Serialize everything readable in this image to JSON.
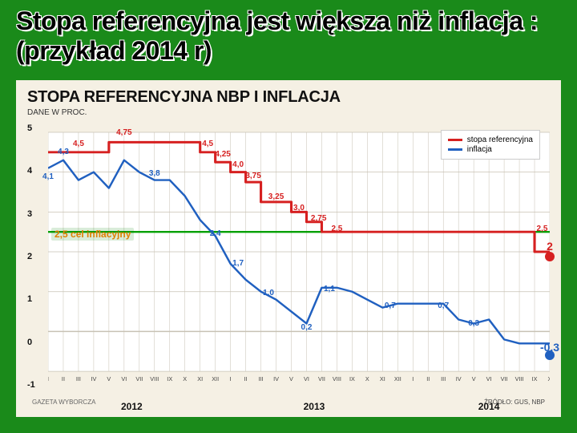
{
  "slide": {
    "title": "Stopa referencyjna jest większa niż inflacja : (przykład 2014 r)"
  },
  "chart": {
    "type": "line",
    "title": "STOPA REFERENCYJNA NBP I INFLACJA",
    "subtitle": "DANE W PROC.",
    "background_color": "#f5f0e4",
    "plot_bg": "#ffffff",
    "grid_color": "#c8c2b4",
    "ylim": [
      -1,
      5
    ],
    "yticks": [
      -1,
      0,
      1,
      2,
      3,
      4,
      5
    ],
    "xlim": [
      1,
      34
    ],
    "months": [
      "I",
      "II",
      "III",
      "IV",
      "V",
      "VI",
      "VII",
      "VIII",
      "IX",
      "X",
      "XI",
      "XII"
    ],
    "years": [
      {
        "label": "2012",
        "center_month": 6.5
      },
      {
        "label": "2013",
        "center_month": 18.5
      },
      {
        "label": "2014",
        "center_month": 30
      }
    ],
    "target_line": {
      "value": 2.5,
      "label": "2,5 cel inflacyjny",
      "color": "#00a000"
    },
    "series": [
      {
        "name": "stopa referencyjna",
        "color": "#d62020",
        "width": 3,
        "step": true,
        "points": [
          {
            "x": 1,
            "y": 4.5
          },
          {
            "x": 5,
            "y": 4.5
          },
          {
            "x": 5,
            "y": 4.75
          },
          {
            "x": 11,
            "y": 4.75
          },
          {
            "x": 11,
            "y": 4.5
          },
          {
            "x": 12,
            "y": 4.5
          },
          {
            "x": 12,
            "y": 4.25
          },
          {
            "x": 13,
            "y": 4.25
          },
          {
            "x": 13,
            "y": 4.0
          },
          {
            "x": 14,
            "y": 4.0
          },
          {
            "x": 14,
            "y": 3.75
          },
          {
            "x": 15,
            "y": 3.75
          },
          {
            "x": 15,
            "y": 3.25
          },
          {
            "x": 17,
            "y": 3.25
          },
          {
            "x": 17,
            "y": 3.0
          },
          {
            "x": 18,
            "y": 3.0
          },
          {
            "x": 18,
            "y": 2.75
          },
          {
            "x": 19,
            "y": 2.75
          },
          {
            "x": 19,
            "y": 2.5
          },
          {
            "x": 33,
            "y": 2.5
          },
          {
            "x": 33,
            "y": 2.0
          },
          {
            "x": 34,
            "y": 2.0
          }
        ],
        "annotations": [
          {
            "x": 3,
            "y": 4.5,
            "t": "4,5"
          },
          {
            "x": 6,
            "y": 4.75,
            "t": "4,75"
          },
          {
            "x": 11.5,
            "y": 4.5,
            "t": "4,5"
          },
          {
            "x": 12.5,
            "y": 4.25,
            "t": "4,25"
          },
          {
            "x": 13.5,
            "y": 4.0,
            "t": "4,0"
          },
          {
            "x": 14.5,
            "y": 3.75,
            "t": "3,75"
          },
          {
            "x": 16,
            "y": 3.25,
            "t": "3,25"
          },
          {
            "x": 17.5,
            "y": 3.0,
            "t": "3,0"
          },
          {
            "x": 18.8,
            "y": 2.75,
            "t": "2,75"
          },
          {
            "x": 20,
            "y": 2.5,
            "t": "2,5"
          },
          {
            "x": 33.5,
            "y": 2.5,
            "t": "2,5"
          },
          {
            "x": 34,
            "y": 2.05,
            "t": "2",
            "bold": true
          }
        ],
        "end_marker": {
          "x": 34,
          "y": 2.0
        }
      },
      {
        "name": "inflacja",
        "color": "#2060c0",
        "width": 2.4,
        "step": false,
        "points": [
          {
            "x": 1,
            "y": 4.1
          },
          {
            "x": 2,
            "y": 4.3
          },
          {
            "x": 3,
            "y": 3.8
          },
          {
            "x": 4,
            "y": 4.0
          },
          {
            "x": 5,
            "y": 3.6
          },
          {
            "x": 6,
            "y": 4.3
          },
          {
            "x": 7,
            "y": 4.0
          },
          {
            "x": 8,
            "y": 3.8
          },
          {
            "x": 9,
            "y": 3.8
          },
          {
            "x": 10,
            "y": 3.4
          },
          {
            "x": 11,
            "y": 2.8
          },
          {
            "x": 12,
            "y": 2.4
          },
          {
            "x": 13,
            "y": 1.7
          },
          {
            "x": 14,
            "y": 1.3
          },
          {
            "x": 15,
            "y": 1.0
          },
          {
            "x": 16,
            "y": 0.8
          },
          {
            "x": 17,
            "y": 0.5
          },
          {
            "x": 18,
            "y": 0.2
          },
          {
            "x": 19,
            "y": 1.1
          },
          {
            "x": 20,
            "y": 1.1
          },
          {
            "x": 21,
            "y": 1.0
          },
          {
            "x": 22,
            "y": 0.8
          },
          {
            "x": 23,
            "y": 0.6
          },
          {
            "x": 24,
            "y": 0.7
          },
          {
            "x": 25,
            "y": 0.7
          },
          {
            "x": 26,
            "y": 0.7
          },
          {
            "x": 27,
            "y": 0.7
          },
          {
            "x": 28,
            "y": 0.3
          },
          {
            "x": 29,
            "y": 0.2
          },
          {
            "x": 30,
            "y": 0.3
          },
          {
            "x": 31,
            "y": -0.2
          },
          {
            "x": 32,
            "y": -0.3
          },
          {
            "x": 33,
            "y": -0.3
          },
          {
            "x": 34,
            "y": -0.3
          }
        ],
        "annotations": [
          {
            "x": 1,
            "y": 4.1,
            "t": "4,1",
            "off": "below"
          },
          {
            "x": 2,
            "y": 4.3,
            "t": "4,3"
          },
          {
            "x": 8,
            "y": 3.8,
            "t": "3,8"
          },
          {
            "x": 12,
            "y": 2.4,
            "t": "2,4"
          },
          {
            "x": 13.5,
            "y": 1.7,
            "t": "1,7"
          },
          {
            "x": 15.5,
            "y": 1.0,
            "t": "1,0"
          },
          {
            "x": 18,
            "y": 0.2,
            "t": "0,2"
          },
          {
            "x": 19.5,
            "y": 1.1,
            "t": "1,1"
          },
          {
            "x": 23.5,
            "y": 0.7,
            "t": "0,7"
          },
          {
            "x": 27,
            "y": 0.7,
            "t": "0,7"
          },
          {
            "x": 29,
            "y": 0.3,
            "t": "0,3"
          },
          {
            "x": 34,
            "y": -0.3,
            "t": "-0,3",
            "bold": true
          }
        ],
        "end_marker": {
          "x": 34,
          "y": -0.3
        }
      }
    ],
    "legend": {
      "items": [
        {
          "label": "stopa referencyjna",
          "color": "#d62020"
        },
        {
          "label": "inflacja",
          "color": "#2060c0"
        }
      ]
    },
    "source_left": "GAZETA WYBORCZA",
    "source_right": "ŹRÓDŁO: GUS, NBP"
  }
}
